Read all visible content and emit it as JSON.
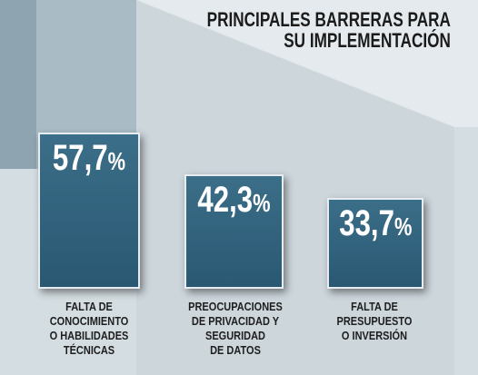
{
  "title_lines": [
    "PRINCIPALES BARRERAS PARA",
    "SU IMPLEMENTACIÓN"
  ],
  "colors": {
    "background": "#d4dde1",
    "bar": "#2f5f7a",
    "bar_border": "#e6ecef",
    "value_text": "#ffffff",
    "label_text": "#1e1e1e"
  },
  "chart_data": {
    "type": "bar",
    "title": "PRINCIPALES BARRERAS PARA SU IMPLEMENTACIÓN",
    "categories": [
      "FALTA DE CONOCIMIENTO O HABILIDADES TÉCNICAS",
      "PREOCUPACIONES DE PRIVACIDAD Y SEGURIDAD DE DATOS",
      "FALTA DE PRESUPUESTO O INVERSIÓN"
    ],
    "values": [
      57.7,
      42.3,
      33.7
    ],
    "value_labels": [
      {
        "num": "57,7",
        "unit": "%"
      },
      {
        "num": "42,3",
        "unit": "%"
      },
      {
        "num": "33,7",
        "unit": "%"
      }
    ],
    "category_lines": [
      [
        "FALTA DE",
        "CONOCIMIENTO",
        "O HABILIDADES",
        "TÉCNICAS"
      ],
      [
        "PREOCUPACIONES",
        "DE PRIVACIDAD Y",
        "SEGURIDAD",
        "DE DATOS"
      ],
      [
        "FALTA DE",
        "PRESUPUESTO",
        "O INVERSIÓN"
      ]
    ],
    "unit": "%",
    "xlabel": "",
    "ylabel": "",
    "legend": "none",
    "grid": false
  }
}
